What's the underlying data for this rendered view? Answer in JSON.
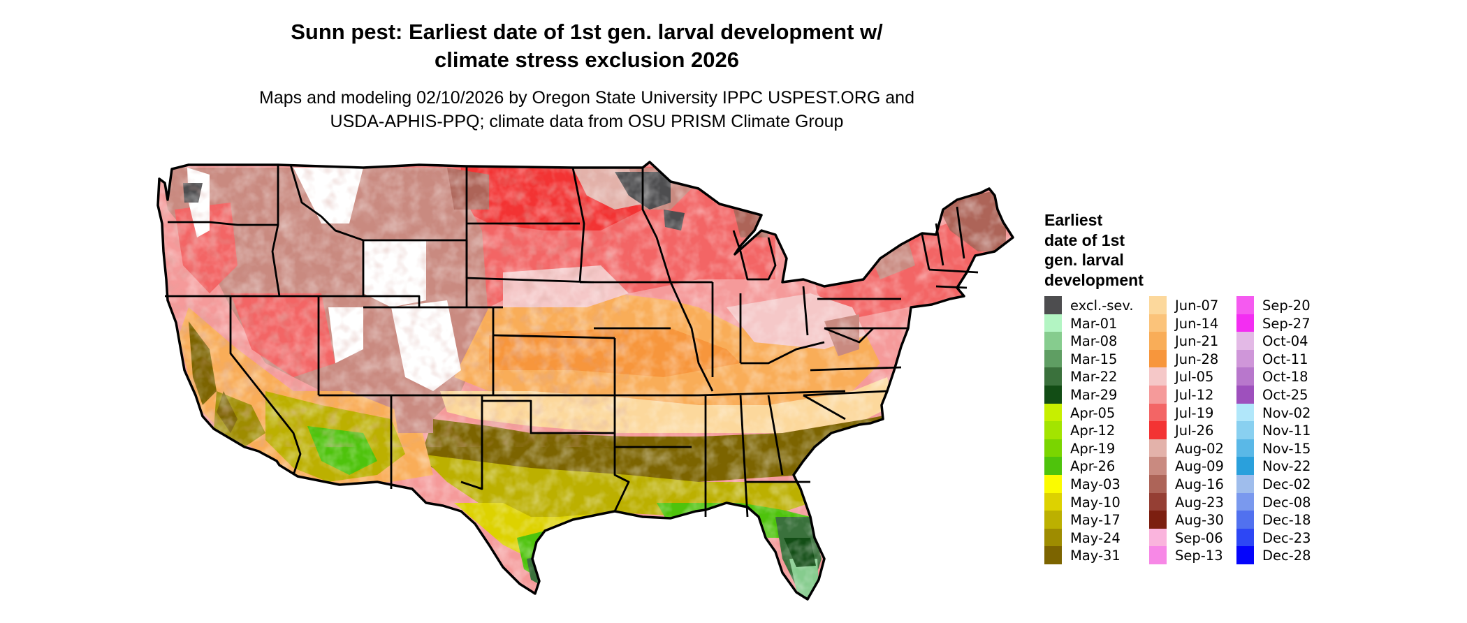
{
  "title": {
    "line1": "Sunn pest: Earliest date of 1st gen. larval development w/",
    "line2": "climate stress exclusion 2026"
  },
  "subtitle": {
    "line1": "Maps and modeling 02/10/2026 by Oregon State University IPPC USPEST.ORG and",
    "line2": "USDA-APHIS-PPQ; climate data from OSU PRISM Climate Group"
  },
  "legend": {
    "title_lines": [
      "Earliest",
      "date of 1st",
      "gen. larval",
      "development"
    ],
    "columns": [
      [
        {
          "label": "excl.-sev.",
          "color": "#4d4d4f"
        },
        {
          "label": "Mar-01",
          "color": "#b3f5c3"
        },
        {
          "label": "Mar-08",
          "color": "#86cc8e"
        },
        {
          "label": "Mar-15",
          "color": "#5f9e63"
        },
        {
          "label": "Mar-22",
          "color": "#3a713c"
        },
        {
          "label": "Mar-29",
          "color": "#124d15"
        },
        {
          "label": "Apr-05",
          "color": "#c7ef00"
        },
        {
          "label": "Apr-12",
          "color": "#a3e400"
        },
        {
          "label": "Apr-19",
          "color": "#7ad500"
        },
        {
          "label": "Apr-26",
          "color": "#4ec30c"
        },
        {
          "label": "May-03",
          "color": "#fbfb00"
        },
        {
          "label": "May-10",
          "color": "#ddd200"
        },
        {
          "label": "May-17",
          "color": "#bcb000"
        },
        {
          "label": "May-24",
          "color": "#9e8c00"
        },
        {
          "label": "May-31",
          "color": "#7c6400"
        }
      ],
      [
        {
          "label": "Jun-07",
          "color": "#fcd89c"
        },
        {
          "label": "Jun-14",
          "color": "#fbc37a"
        },
        {
          "label": "Jun-21",
          "color": "#f9ad58"
        },
        {
          "label": "Jun-28",
          "color": "#f7963c"
        },
        {
          "label": "Jul-05",
          "color": "#f5c8c8"
        },
        {
          "label": "Jul-12",
          "color": "#f59a9a"
        },
        {
          "label": "Jul-19",
          "color": "#f36565"
        },
        {
          "label": "Jul-26",
          "color": "#f33333"
        },
        {
          "label": "Aug-02",
          "color": "#e3b2aa"
        },
        {
          "label": "Aug-09",
          "color": "#c98a80"
        },
        {
          "label": "Aug-16",
          "color": "#ad6458"
        },
        {
          "label": "Aug-23",
          "color": "#953f34"
        },
        {
          "label": "Aug-30",
          "color": "#7c1f10"
        },
        {
          "label": "Sep-06",
          "color": "#fab4dd"
        },
        {
          "label": "Sep-13",
          "color": "#f788e6"
        }
      ],
      [
        {
          "label": "Sep-20",
          "color": "#f55af0"
        },
        {
          "label": "Sep-27",
          "color": "#f32df2"
        },
        {
          "label": "Oct-04",
          "color": "#e3b9e6"
        },
        {
          "label": "Oct-11",
          "color": "#cf96d9"
        },
        {
          "label": "Oct-18",
          "color": "#b877cc"
        },
        {
          "label": "Oct-25",
          "color": "#9e50bd"
        },
        {
          "label": "Nov-02",
          "color": "#b1e7fa"
        },
        {
          "label": "Nov-11",
          "color": "#89d0f0"
        },
        {
          "label": "Nov-15",
          "color": "#5ab8e7"
        },
        {
          "label": "Nov-22",
          "color": "#2aa0dc"
        },
        {
          "label": "Dec-02",
          "color": "#9fbdec"
        },
        {
          "label": "Dec-08",
          "color": "#7a99ee"
        },
        {
          "label": "Dec-18",
          "color": "#5171ef"
        },
        {
          "label": "Dec-23",
          "color": "#2d47f5"
        },
        {
          "label": "Dec-28",
          "color": "#0505fb"
        }
      ]
    ]
  },
  "map": {
    "colors": {
      "white": "#ffffff",
      "exclusion": "#4d4d4f",
      "mar_dark": "#124d15",
      "mar_mid": "#3a713c",
      "mar_light": "#86cc8e",
      "apr": "#4ec30c",
      "apr_light": "#a3e400",
      "may_yellow": "#ddd200",
      "may_olive": "#bcb000",
      "may_brown": "#7c6400",
      "jun_light": "#fcd89c",
      "jun_orange": "#f9ad58",
      "jun_dark": "#f7963c",
      "jul_pink": "#f5c8c8",
      "jul_mid": "#f59a9a",
      "jul_red": "#f36565",
      "jul_bright": "#f33333",
      "aug_pale": "#e3b2aa",
      "aug_mid": "#c98a80",
      "aug_brown": "#ad6458",
      "magenta": "#f32df2",
      "border": "#000000"
    }
  }
}
